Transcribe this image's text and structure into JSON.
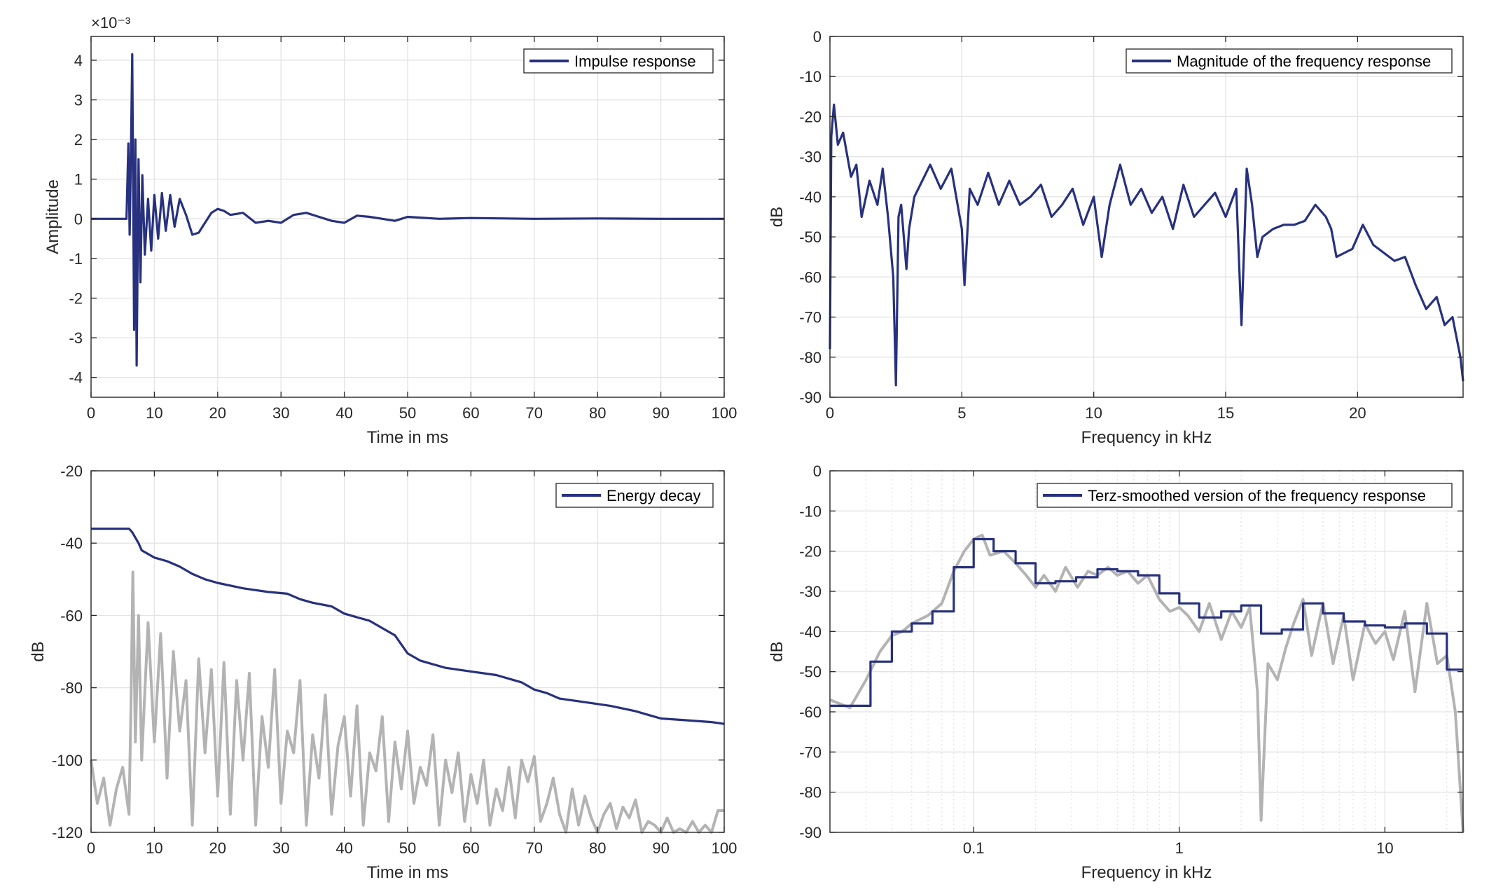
{
  "colors": {
    "primary": "#27317f",
    "gray": "#b3b3b3"
  },
  "chart_data": [
    {
      "type": "line",
      "xlabel": "Time in ms",
      "ylabel": "Amplitude",
      "exponent": "×10⁻³",
      "legend": "Impulse response",
      "legend_position": "top-right",
      "grid": true,
      "xlim": [
        0,
        100
      ],
      "ylim": [
        -4.5,
        4.6
      ],
      "xticks": [
        0,
        10,
        20,
        30,
        40,
        50,
        60,
        70,
        80,
        90,
        100
      ],
      "yticks": [
        4,
        3,
        2,
        1,
        0,
        -1,
        -2,
        -3,
        -4
      ],
      "series": [
        {
          "x": [
            0,
            5.6,
            5.9,
            6.1,
            6.3,
            6.5,
            6.8,
            7.0,
            7.2,
            7.5,
            7.8,
            8.1,
            8.5,
            9.0,
            9.5,
            10,
            10.6,
            11.2,
            11.8,
            12.5,
            13.2,
            14,
            15,
            16,
            17,
            18,
            19,
            20,
            21,
            22,
            24,
            26,
            28,
            30,
            32,
            34,
            36,
            38,
            40,
            42,
            44,
            46,
            48,
            50,
            55,
            60,
            70,
            80,
            90,
            100
          ],
          "y": [
            0,
            0,
            1.9,
            -0.4,
            1.7,
            4.15,
            -2.8,
            2.0,
            -3.7,
            1.5,
            -1.6,
            1.1,
            -0.9,
            0.5,
            -0.8,
            0.6,
            -0.5,
            0.65,
            -0.3,
            0.6,
            -0.2,
            0.5,
            0.1,
            -0.4,
            -0.35,
            -0.1,
            0.15,
            0.25,
            0.2,
            0.1,
            0.15,
            -0.1,
            -0.05,
            -0.1,
            0.1,
            0.15,
            0.05,
            -0.05,
            -0.1,
            0.08,
            0.05,
            0.0,
            -0.05,
            0.05,
            0.0,
            0.02,
            0.0,
            0.01,
            0.0,
            0.0
          ]
        }
      ]
    },
    {
      "type": "line",
      "xlabel": "Frequency in kHz",
      "ylabel": "dB",
      "legend": "Magnitude of the frequency response",
      "legend_position": "top-right",
      "grid": true,
      "xlim": [
        0,
        24
      ],
      "ylim": [
        -90,
        0
      ],
      "xticks": [
        0,
        5,
        10,
        15,
        20
      ],
      "yticks": [
        0,
        -10,
        -20,
        -30,
        -40,
        -50,
        -60,
        -70,
        -80,
        -90
      ],
      "series": [
        {
          "x": [
            0,
            0.05,
            0.15,
            0.3,
            0.5,
            0.8,
            1.0,
            1.2,
            1.5,
            1.8,
            2.0,
            2.2,
            2.4,
            2.5,
            2.6,
            2.7,
            2.9,
            3.0,
            3.2,
            3.5,
            3.8,
            4.2,
            4.6,
            5.0,
            5.1,
            5.3,
            5.6,
            6.0,
            6.4,
            6.8,
            7.2,
            7.6,
            8.0,
            8.4,
            8.8,
            9.2,
            9.6,
            10.0,
            10.3,
            10.6,
            11.0,
            11.4,
            11.8,
            12.2,
            12.6,
            13.0,
            13.4,
            13.8,
            14.2,
            14.6,
            15.0,
            15.4,
            15.6,
            15.8,
            16.0,
            16.2,
            16.4,
            16.8,
            17.2,
            17.6,
            18.0,
            18.4,
            18.8,
            19.0,
            19.2,
            19.5,
            19.8,
            20.2,
            20.6,
            21.0,
            21.4,
            21.8,
            22.2,
            22.6,
            23.0,
            23.3,
            23.6,
            23.9,
            24.0
          ],
          "y": [
            -78,
            -25,
            -17,
            -27,
            -24,
            -35,
            -32,
            -45,
            -36,
            -42,
            -33,
            -45,
            -60,
            -87,
            -45,
            -42,
            -58,
            -48,
            -40,
            -36,
            -32,
            -38,
            -33,
            -48,
            -62,
            -38,
            -42,
            -34,
            -42,
            -36,
            -42,
            -40,
            -37,
            -45,
            -42,
            -38,
            -47,
            -40,
            -55,
            -42,
            -32,
            -42,
            -38,
            -44,
            -40,
            -48,
            -37,
            -45,
            -42,
            -39,
            -45,
            -38,
            -72,
            -33,
            -42,
            -55,
            -50,
            -48,
            -47,
            -47,
            -46,
            -42,
            -45,
            -48,
            -55,
            -54,
            -53,
            -47,
            -52,
            -54,
            -56,
            -55,
            -62,
            -68,
            -65,
            -72,
            -70,
            -80,
            -86
          ]
        }
      ]
    },
    {
      "type": "line",
      "xlabel": "Time in ms",
      "ylabel": "dB",
      "legend": "Energy decay",
      "legend_position": "top-right",
      "grid": true,
      "xlim": [
        0,
        100
      ],
      "ylim": [
        -120,
        -20
      ],
      "xticks": [
        0,
        10,
        20,
        30,
        40,
        50,
        60,
        70,
        80,
        90,
        100
      ],
      "yticks": [
        -20,
        -40,
        -60,
        -80,
        -100,
        -120
      ],
      "series": [
        {
          "x": [
            0,
            6,
            6.5,
            7.5,
            8,
            10,
            12,
            14,
            16,
            18,
            20,
            24,
            28,
            31,
            33,
            35,
            38,
            40,
            42,
            44,
            46,
            48,
            50,
            52,
            56,
            60,
            64,
            66,
            68,
            70,
            72,
            74,
            78,
            82,
            86,
            88,
            90,
            94,
            98,
            100
          ],
          "y": [
            -36,
            -36,
            -37,
            -40,
            -42,
            -44,
            -45,
            -46.5,
            -48.5,
            -50,
            -51,
            -52.5,
            -53.5,
            -54,
            -55.5,
            -56.5,
            -57.5,
            -59.5,
            -60.5,
            -61.5,
            -63.5,
            -65.5,
            -70.5,
            -72.5,
            -74.5,
            -75.5,
            -76.5,
            -77.5,
            -78.5,
            -80.5,
            -81.5,
            -83,
            -84,
            -85,
            -86.5,
            -87.5,
            -88.5,
            -89,
            -89.5,
            -90
          ]
        },
        {
          "x": [
            0,
            1,
            2,
            3,
            4,
            5,
            6,
            6.3,
            6.6,
            7,
            7.5,
            8,
            9,
            10,
            11,
            12,
            13,
            14,
            15,
            16,
            17,
            18,
            19,
            20,
            21,
            22,
            23,
            24,
            25,
            26,
            27,
            28,
            29,
            30,
            31,
            32,
            33,
            34,
            35,
            36,
            37,
            38,
            39,
            40,
            41,
            42,
            43,
            44,
            45,
            46,
            47,
            48,
            49,
            50,
            51,
            52,
            53,
            54,
            55,
            56,
            57,
            58,
            59,
            60,
            61,
            62,
            63,
            64,
            65,
            66,
            67,
            68,
            69,
            70,
            71,
            72,
            73,
            74,
            75,
            76,
            77,
            78,
            79,
            80,
            81,
            82,
            83,
            84,
            85,
            86,
            87,
            88,
            89,
            90,
            91,
            92,
            93,
            94,
            95,
            96,
            97,
            98,
            99,
            100
          ],
          "y": [
            -100,
            -112,
            -105,
            -118,
            -108,
            -102,
            -115,
            -85,
            -48,
            -95,
            -60,
            -100,
            -62,
            -95,
            -65,
            -105,
            -70,
            -92,
            -78,
            -118,
            -72,
            -98,
            -75,
            -110,
            -73,
            -115,
            -78,
            -100,
            -76,
            -118,
            -88,
            -102,
            -75,
            -112,
            -92,
            -98,
            -78,
            -118,
            -93,
            -105,
            -82,
            -115,
            -96,
            -88,
            -110,
            -85,
            -118,
            -98,
            -103,
            -88,
            -117,
            -95,
            -108,
            -92,
            -112,
            -102,
            -107,
            -93,
            -118,
            -100,
            -109,
            -98,
            -117,
            -104,
            -112,
            -100,
            -118,
            -108,
            -114,
            -102,
            -116,
            -100,
            -106,
            -99,
            -117,
            -112,
            -105,
            -115,
            -120,
            -108,
            -118,
            -110,
            -116,
            -120,
            -115,
            -112,
            -119,
            -113,
            -116,
            -111,
            -120,
            -117,
            -118,
            -120,
            -116,
            -120,
            -119,
            -120,
            -117,
            -120,
            -118,
            -120,
            -114,
            -114
          ]
        }
      ]
    },
    {
      "type": "line",
      "xscale": "log",
      "xlabel": "Frequency in kHz",
      "ylabel": "dB",
      "legend": "Terz-smoothed version of the frequency response",
      "legend_position": "top-right",
      "grid": true,
      "xlim": [
        0.02,
        24
      ],
      "ylim": [
        -90,
        0
      ],
      "xticks": [
        0.1,
        1,
        10
      ],
      "xtick_labels": [
        "0.1",
        "1",
        "10"
      ],
      "yticks": [
        0,
        -10,
        -20,
        -30,
        -40,
        -50,
        -60,
        -70,
        -80,
        -90
      ],
      "series": [
        {
          "x": [
            0.02,
            0.0315,
            0.0315,
            0.04,
            0.04,
            0.05,
            0.05,
            0.063,
            0.063,
            0.08,
            0.08,
            0.1,
            0.1,
            0.125,
            0.125,
            0.16,
            0.16,
            0.2,
            0.2,
            0.25,
            0.25,
            0.315,
            0.315,
            0.4,
            0.4,
            0.5,
            0.5,
            0.63,
            0.63,
            0.8,
            0.8,
            1.0,
            1.0,
            1.25,
            1.25,
            1.6,
            1.6,
            2.0,
            2.0,
            2.5,
            2.5,
            3.15,
            3.15,
            4.0,
            4.0,
            5.0,
            5.0,
            6.3,
            6.3,
            8.0,
            8.0,
            10.0,
            10.0,
            12.5,
            12.5,
            16.0,
            16.0,
            20.0,
            20.0,
            24.0
          ],
          "y": [
            -58.5,
            -58.5,
            -47.5,
            -47.5,
            -40,
            -40,
            -38,
            -38,
            -35,
            -35,
            -24,
            -24,
            -17,
            -17,
            -20,
            -20,
            -23,
            -23,
            -28,
            -28,
            -27.5,
            -27.5,
            -26.5,
            -26.5,
            -24.5,
            -24.5,
            -25,
            -25,
            -26,
            -26,
            -30.5,
            -30.5,
            -33,
            -33,
            -36.5,
            -36.5,
            -35,
            -35,
            -33.5,
            -33.5,
            -40.5,
            -40.5,
            -39.5,
            -39.5,
            -33,
            -33,
            -35.5,
            -35.5,
            -37.5,
            -37.5,
            -38.5,
            -38.5,
            -39,
            -39,
            -38,
            -38,
            -40.5,
            -40.5,
            -49.5,
            -49.5
          ]
        },
        {
          "x": [
            0.02,
            0.025,
            0.03,
            0.035,
            0.04,
            0.045,
            0.05,
            0.06,
            0.07,
            0.08,
            0.09,
            0.1,
            0.11,
            0.12,
            0.14,
            0.16,
            0.18,
            0.2,
            0.22,
            0.25,
            0.28,
            0.32,
            0.36,
            0.4,
            0.45,
            0.5,
            0.56,
            0.63,
            0.7,
            0.8,
            0.9,
            1.0,
            1.1,
            1.25,
            1.4,
            1.6,
            1.8,
            2.0,
            2.2,
            2.4,
            2.5,
            2.7,
            3.0,
            3.3,
            3.6,
            4.0,
            4.4,
            5.0,
            5.6,
            6.3,
            7.0,
            8.0,
            9.0,
            10,
            11,
            12.5,
            14,
            16,
            18,
            20,
            22,
            24
          ],
          "y": [
            -57,
            -59,
            -52,
            -45,
            -41,
            -40,
            -38,
            -36,
            -33,
            -25,
            -20,
            -17,
            -16,
            -21,
            -20,
            -23,
            -26,
            -29,
            -26,
            -30,
            -24,
            -29,
            -25,
            -26,
            -24,
            -26,
            -25,
            -28,
            -26,
            -32,
            -35,
            -34,
            -36,
            -40,
            -33,
            -42,
            -35,
            -39,
            -34,
            -55,
            -87,
            -48,
            -52,
            -44,
            -38,
            -32,
            -46,
            -33,
            -48,
            -36,
            -52,
            -38,
            -43,
            -40,
            -47,
            -35,
            -55,
            -33,
            -48,
            -46,
            -60,
            -90
          ]
        }
      ]
    }
  ]
}
